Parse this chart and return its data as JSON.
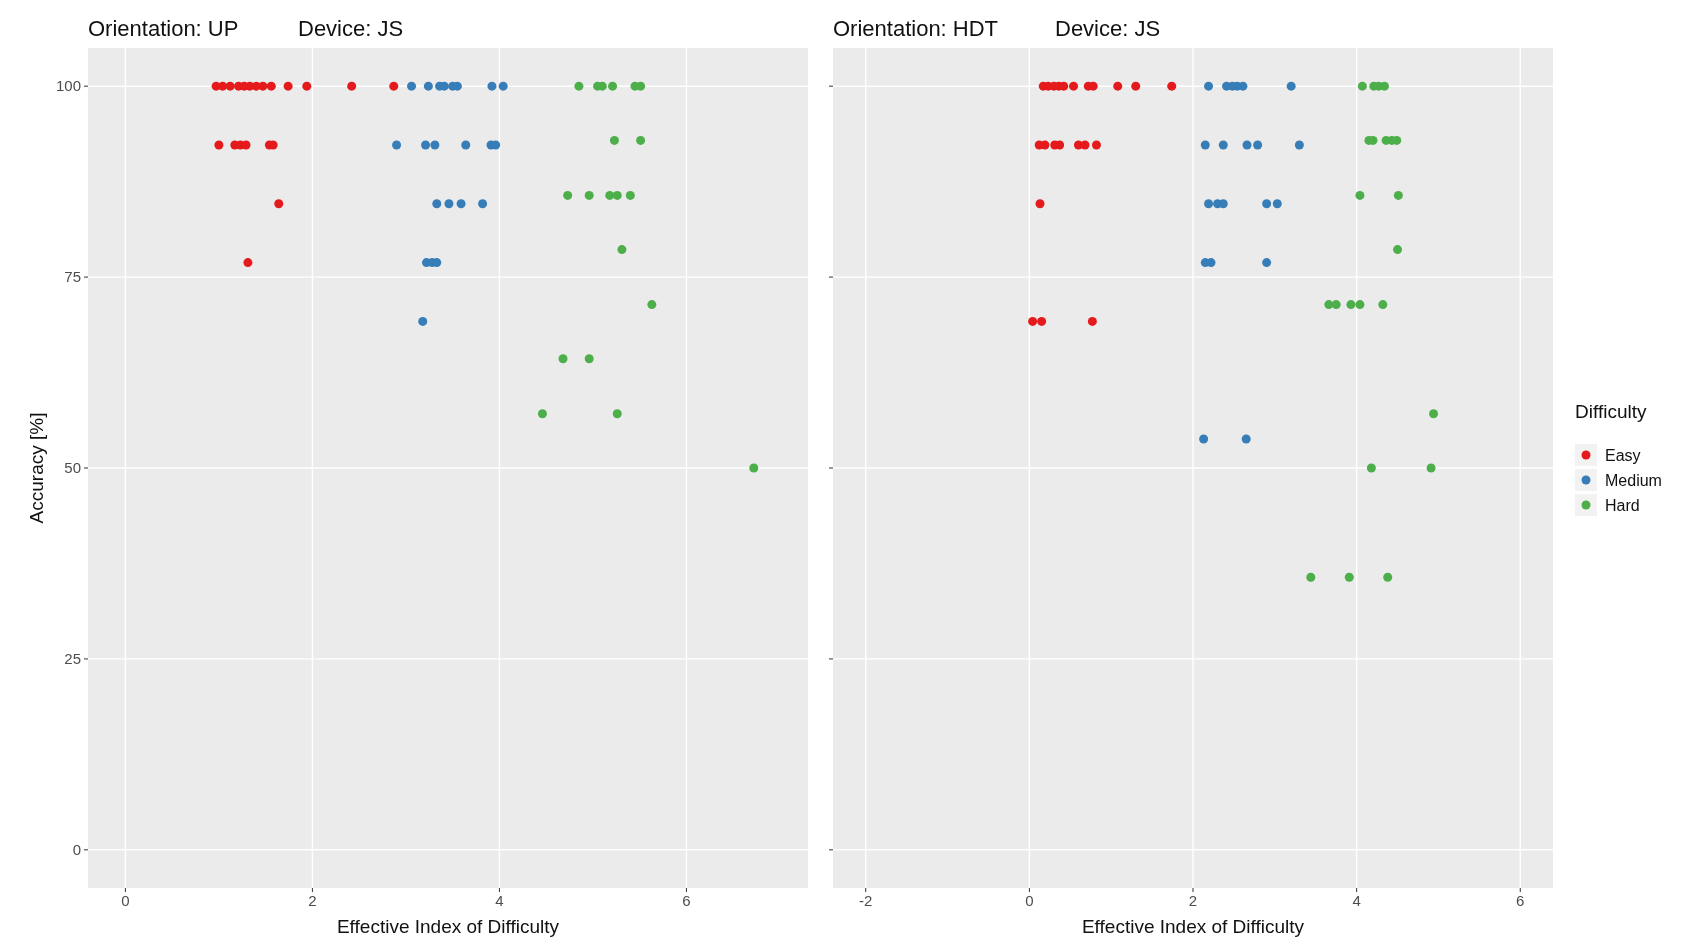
{
  "chart_data": [
    {
      "type": "scatter",
      "title": "Orientation: UP",
      "subtitle": "Device: JS",
      "xlabel": "Effective Index of Difficulty",
      "ylabel": "Accuracy [%]",
      "xlim": [
        -0.4,
        7.3
      ],
      "xticks": [
        0,
        2,
        4,
        6
      ],
      "ylim": [
        -5,
        105
      ],
      "yticks": [
        0,
        25,
        50,
        75,
        100
      ],
      "grid": true,
      "marker": "circle",
      "legend": false,
      "series": [
        {
          "color": "#e41a1c",
          "x": [
            0.97,
            1.04,
            1.12,
            1.21,
            1.27,
            1.33,
            1.4,
            1.47,
            1.56,
            1.74,
            1.94,
            2.42,
            2.87,
            1.0,
            1.17,
            1.23,
            1.29,
            1.54,
            1.58,
            1.64,
            1.31
          ],
          "values": [
            100,
            100,
            100,
            100,
            100,
            100,
            100,
            100,
            100,
            100,
            100,
            100,
            100,
            92.3,
            92.3,
            92.3,
            92.3,
            92.3,
            92.3,
            84.6,
            76.9
          ]
        },
        {
          "color": "#377eb8",
          "x": [
            3.06,
            3.24,
            3.36,
            3.41,
            3.5,
            3.55,
            3.92,
            4.04,
            2.9,
            3.21,
            3.31,
            3.64,
            3.91,
            3.96,
            3.33,
            3.46,
            3.59,
            3.82,
            3.22,
            3.28,
            3.33,
            3.18
          ],
          "values": [
            100,
            100,
            100,
            100,
            100,
            100,
            100,
            100,
            92.3,
            92.3,
            92.3,
            92.3,
            92.3,
            92.3,
            84.6,
            84.6,
            84.6,
            84.6,
            76.9,
            76.9,
            76.9,
            69.2
          ]
        },
        {
          "color": "#4daf4a",
          "x": [
            4.85,
            5.05,
            5.1,
            5.21,
            5.45,
            5.51,
            5.23,
            5.51,
            4.73,
            4.96,
            5.18,
            5.26,
            5.4,
            5.31,
            5.63,
            4.68,
            4.96,
            4.46,
            5.26,
            6.72
          ],
          "values": [
            100,
            100,
            100,
            100,
            100,
            100,
            92.9,
            92.9,
            85.7,
            85.7,
            85.7,
            85.7,
            85.7,
            78.6,
            71.4,
            64.3,
            64.3,
            57.1,
            57.1,
            50
          ]
        }
      ]
    },
    {
      "type": "scatter",
      "title": "Orientation: HDT",
      "subtitle": "Device: JS",
      "xlabel": "Effective Index of Difficulty",
      "legend_title": "Difficulty",
      "xlim": [
        -2.4,
        6.4
      ],
      "xticks": [
        -2,
        0,
        2,
        4,
        6
      ],
      "ylim": [
        -5,
        105
      ],
      "yticks": [
        0,
        25,
        50,
        75,
        100
      ],
      "tick_labels": "x",
      "grid": true,
      "marker": "circle",
      "legend": "right",
      "series": [
        {
          "name": "Easy",
          "color": "#e41a1c",
          "x": [
            0.17,
            0.23,
            0.3,
            0.36,
            0.42,
            0.54,
            0.72,
            0.78,
            1.08,
            1.3,
            1.74,
            0.12,
            0.19,
            0.31,
            0.37,
            0.6,
            0.68,
            0.82,
            0.13,
            0.04,
            0.15,
            0.77
          ],
          "values": [
            100,
            100,
            100,
            100,
            100,
            100,
            100,
            100,
            100,
            100,
            100,
            92.3,
            92.3,
            92.3,
            92.3,
            92.3,
            92.3,
            92.3,
            84.6,
            69.2,
            69.2,
            69.2
          ]
        },
        {
          "name": "Medium",
          "color": "#377eb8",
          "x": [
            2.19,
            2.41,
            2.48,
            2.54,
            2.61,
            3.2,
            2.15,
            2.37,
            2.66,
            2.79,
            3.3,
            2.19,
            2.3,
            2.37,
            2.9,
            3.03,
            2.15,
            2.22,
            2.9,
            2.13,
            2.65
          ],
          "values": [
            100,
            100,
            100,
            100,
            100,
            100,
            92.3,
            92.3,
            92.3,
            92.3,
            92.3,
            84.6,
            84.6,
            84.6,
            84.6,
            84.6,
            76.9,
            76.9,
            76.9,
            53.8,
            53.8
          ]
        },
        {
          "name": "Hard",
          "color": "#4daf4a",
          "x": [
            4.07,
            4.21,
            4.27,
            4.34,
            4.15,
            4.2,
            4.36,
            4.43,
            4.49,
            4.04,
            4.51,
            4.5,
            3.66,
            3.75,
            3.93,
            4.04,
            4.32,
            4.94,
            4.18,
            4.91,
            3.44,
            3.91,
            4.38
          ],
          "values": [
            100,
            100,
            100,
            100,
            92.9,
            92.9,
            92.9,
            92.9,
            92.9,
            85.7,
            85.7,
            78.6,
            71.4,
            71.4,
            71.4,
            71.4,
            71.4,
            57.1,
            50,
            50,
            35.7,
            35.7,
            35.7
          ]
        }
      ]
    }
  ]
}
